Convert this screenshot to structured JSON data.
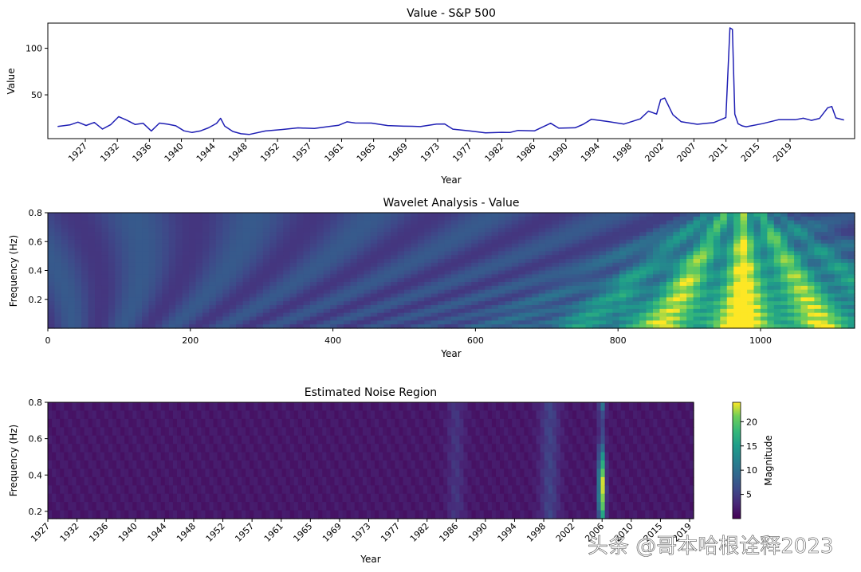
{
  "watermark": "头条 @哥本哈根诠释2023",
  "colors": {
    "line": "#1f1fb4",
    "frame": "#000000"
  },
  "chart_data": [
    {
      "type": "line",
      "title": "Value - S&P 500",
      "xlabel": "Year",
      "ylabel": "Value",
      "yticks": [
        50,
        100
      ],
      "ylim": [
        3,
        127
      ],
      "xlim": [
        1925.3,
        2024.3
      ],
      "xtick_labels": [
        "1927",
        "1932",
        "1936",
        "1940",
        "1944",
        "1948",
        "1952",
        "1957",
        "1961",
        "1965",
        "1969",
        "1973",
        "1977",
        "1982",
        "1986",
        "1990",
        "1994",
        "1998",
        "2002",
        "2007",
        "2011",
        "2015",
        "2019"
      ],
      "series": [
        {
          "x": [
            1926.5,
            1928,
            1929,
            1930,
            1931,
            1932,
            1933,
            1934,
            1935,
            1936,
            1937,
            1938,
            1939,
            1940,
            1941,
            1942,
            1943,
            1944,
            1945,
            1946,
            1946.5,
            1947,
            1948,
            1949,
            1950,
            1952,
            1954,
            1956,
            1958,
            1960,
            1961,
            1962,
            1963,
            1965,
            1967,
            1969,
            1970,
            1971,
            1973,
            1974,
            1975,
            1977,
            1979,
            1981,
            1982,
            1983,
            1985,
            1987,
            1988,
            1990,
            1991,
            1992,
            1994,
            1996,
            1998,
            1999,
            2000,
            2000.5,
            2001,
            2002,
            2003,
            2005,
            2007,
            2008,
            2008.5,
            2009,
            2009.3,
            2009.6,
            2010,
            2010.5,
            2011,
            2013,
            2015,
            2017,
            2018,
            2019,
            2020,
            2021,
            2021.5,
            2022,
            2023
          ],
          "y": [
            16,
            17,
            20,
            17,
            21,
            14,
            18,
            26,
            22,
            18,
            20,
            12,
            20,
            18,
            16,
            11,
            10,
            12,
            15,
            19,
            24,
            16,
            11,
            9,
            8,
            11,
            12,
            14,
            14,
            17,
            18,
            21,
            19,
            19,
            17,
            17,
            17,
            16,
            18,
            18,
            13,
            12,
            10,
            10,
            9,
            11,
            11,
            20,
            15,
            15,
            18,
            23,
            21,
            19,
            25,
            33,
            29,
            44,
            46,
            29,
            22,
            19,
            20,
            23,
            25,
            122,
            121,
            30,
            19,
            16,
            15,
            19,
            24,
            24,
            25,
            22,
            24,
            36,
            38,
            26,
            23
          ]
        }
      ]
    },
    {
      "type": "heatmap",
      "title": "Wavelet Analysis - Value",
      "xlabel": "Year",
      "ylabel": "Frequency (Hz)",
      "xlim": [
        0,
        1132
      ],
      "ylim": [
        0,
        0.8
      ],
      "xticks": [
        0,
        200,
        400,
        600,
        800,
        1000
      ],
      "yticks": [
        0.2,
        0.4,
        0.6,
        0.8
      ],
      "colormap": "viridis",
      "peak_index": 975
    },
    {
      "type": "heatmap",
      "title": "Estimated Noise Region",
      "xlabel": "Year",
      "ylabel": "Frequency (Hz)",
      "xlim": [
        1926.5,
        2023
      ],
      "ylim": [
        0.16,
        0.8
      ],
      "yticks": [
        0.2,
        0.4,
        0.6,
        0.8
      ],
      "xtick_labels": [
        "1927",
        "1932",
        "1936",
        "1940",
        "1944",
        "1948",
        "1952",
        "1957",
        "1961",
        "1965",
        "1969",
        "1973",
        "1977",
        "1982",
        "1986",
        "1990",
        "1994",
        "1998",
        "2002",
        "2006",
        "2010",
        "2015",
        "2019"
      ],
      "colormap": "viridis",
      "colorbar": {
        "label": "Magnitude",
        "ticks": [
          5,
          10,
          15,
          20
        ],
        "range": [
          0,
          24
        ]
      },
      "hot_year": 2009.3
    }
  ]
}
